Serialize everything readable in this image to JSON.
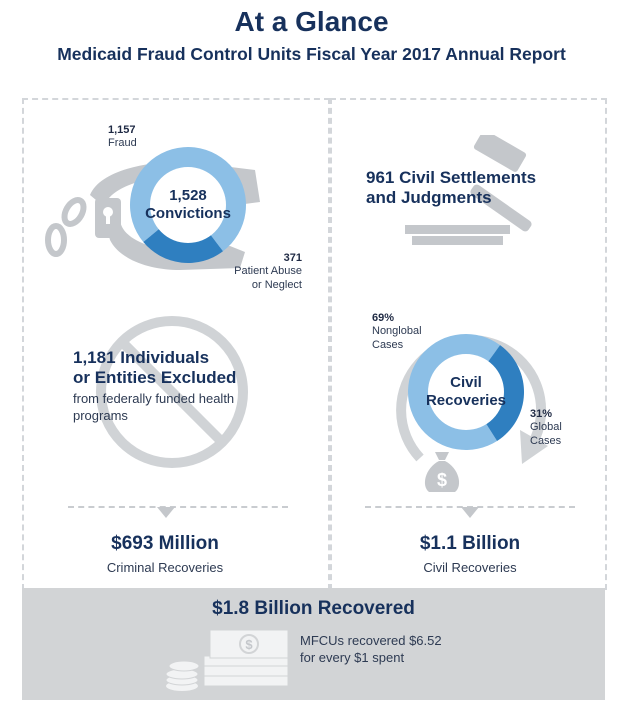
{
  "header": {
    "title": "At a Glance",
    "subtitle": "Medicaid Fraud Control Units Fiscal Year 2017 Annual Report"
  },
  "convictions": {
    "total_value": "1,528",
    "total_label": "Convictions",
    "fraud_value": "1,157",
    "fraud_label": "Fraud",
    "abuse_value": "371",
    "abuse_label_line1": "Patient Abuse",
    "abuse_label_line2": "or Neglect",
    "fraud_share": 0.757,
    "icon": "handcuffs-icon"
  },
  "civil_settlements": {
    "line1": "961 Civil Settlements",
    "line2": "and Judgments",
    "icon": "gavel-icon"
  },
  "exclusions": {
    "line1": "1,181 Individuals",
    "line2": "or Entities Excluded",
    "desc_line1": "from federally funded health",
    "desc_line2": "programs",
    "icon": "prohibited-icon"
  },
  "civil_recoveries": {
    "label_line1": "Civil",
    "label_line2": "Recoveries",
    "nonglobal_value": "69%",
    "nonglobal_label_line1": "Nonglobal",
    "nonglobal_label_line2": "Cases",
    "global_value": "31%",
    "global_label_line1": "Global",
    "global_label_line2": "Cases",
    "nonglobal_share": 0.69,
    "icon": "money-bag-icon"
  },
  "criminal_total": {
    "amount": "$693 Million",
    "label": "Criminal Recoveries"
  },
  "civil_total": {
    "amount": "$1.1 Billion",
    "label": "Civil Recoveries"
  },
  "summary": {
    "title": "$1.8 Billion Recovered",
    "note_line1": "MFCUs recovered $6.52",
    "note_line2": "for every $1 spent",
    "icon": "cash-stack-icon"
  },
  "colors": {
    "navy": "#17315c",
    "light_blue": "#8cbfe6",
    "mid_blue": "#2f7fc0",
    "gray": "#c4c7cb",
    "panel": "#d2d4d6"
  }
}
